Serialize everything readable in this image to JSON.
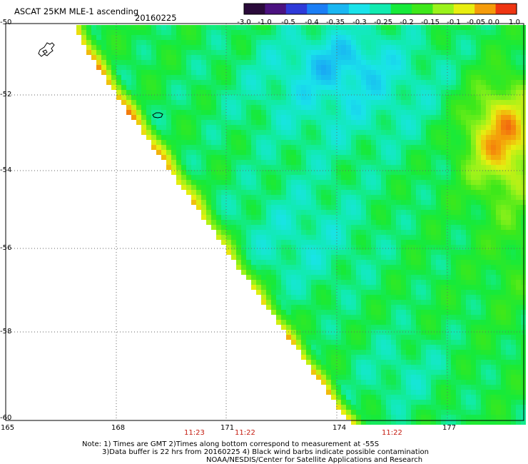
{
  "header": {
    "title": "ASCAT 25KM MLE-1 ascending",
    "date": "20160225"
  },
  "colorbar": {
    "ticks": [
      "-3.0",
      "-1.0",
      "-0.5",
      "-0.4",
      "-0.35",
      "-0.3",
      "-0.25",
      "-0.2",
      "-0.15",
      "-0.1",
      "-0.05",
      "0.0",
      "1.0"
    ],
    "colors": [
      "#2a0a3a",
      "#4b1280",
      "#2e3ad9",
      "#1b7ef5",
      "#19b6f2",
      "#19e3ea",
      "#11ebb0",
      "#16ea3a",
      "#3ee81a",
      "#9bf21a",
      "#e8ee10",
      "#f59b0a",
      "#ef3512"
    ]
  },
  "map": {
    "lat_labels": [
      "-50",
      "-52",
      "-54",
      "-56",
      "-58",
      "-60"
    ],
    "lon_labels": [
      "165",
      "168",
      "171",
      "174",
      "177"
    ],
    "times": [
      "11:23",
      "11:22",
      "11:22"
    ],
    "time_color": "#c41a0e"
  },
  "footer": {
    "note_line1": "Note: 1) Times are GMT 2)Times along bottom correspond to measurement at -55S",
    "note_line2": "3)Data buffer is 22 hrs from 20160225 4) Black wind barbs indicate possible contamination",
    "credit": "NOAA/NESDIS/Center for Satellite Applications and Research"
  }
}
